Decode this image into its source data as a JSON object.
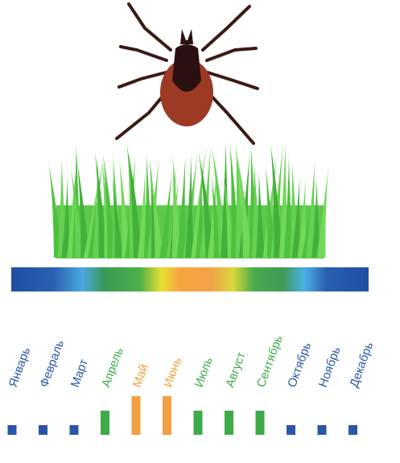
{
  "chart_data": {
    "type": "bar",
    "categories": [
      "Январь",
      "Февраль",
      "Март",
      "Апрель",
      "Май",
      "Июнь",
      "Июль",
      "Август",
      "Сентябрь",
      "Октябрь",
      "Ноябрь",
      "Декабрь"
    ],
    "values": [
      1,
      1,
      1,
      2.5,
      4,
      4,
      2.5,
      2.5,
      2.5,
      1,
      1,
      1
    ],
    "colors": [
      "#2b55a6",
      "#2b55a6",
      "#2b55a6",
      "#3faa4a",
      "#f0a040",
      "#f0a040",
      "#3faa4a",
      "#3faa4a",
      "#3faa4a",
      "#2b55a6",
      "#2b55a6",
      "#2b55a6"
    ]
  }
}
